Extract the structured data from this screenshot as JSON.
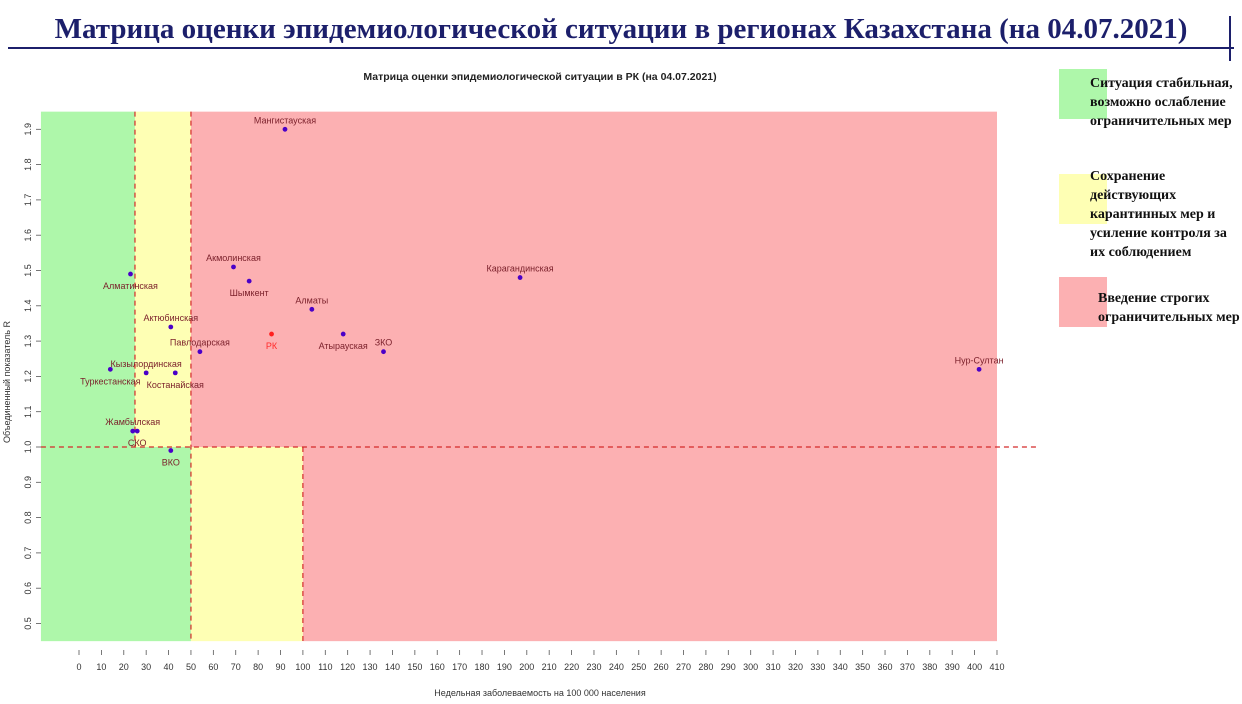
{
  "page": {
    "title": "Матрица оценки эпидемиологической ситуации в регионах Казахстана (на 04.07.2021)"
  },
  "legend": [
    {
      "label": "Ситуация стабильная, возможно ослабление ограничительных мер",
      "color": "#aef7aa"
    },
    {
      "label": "Сохранение действующих карантинных мер и усиление контроля за их соблюдением",
      "color": "#feffb4"
    },
    {
      "label": "Введение строгих ограничительных мер",
      "color": "#fcb0b2"
    }
  ],
  "chart_data": {
    "type": "scatter",
    "title": "Матрица оценки эпидемиологической ситуации в РК (на 04.07.2021)",
    "xlabel": "Недельная заболеваемость на 100 000 населения",
    "ylabel": "Объединенный показатель R",
    "xlim": [
      0,
      410
    ],
    "ylim": [
      0.5,
      1.9
    ],
    "x_ticks": [
      "0",
      "10",
      "20",
      "30",
      "40",
      "50",
      "60",
      "70",
      "80",
      "90",
      "100",
      "110",
      "120",
      "130",
      "140",
      "150",
      "160",
      "170",
      "180",
      "190",
      "200",
      "210",
      "220",
      "230",
      "240",
      "250",
      "260",
      "270",
      "280",
      "290",
      "300",
      "310",
      "320",
      "330",
      "340",
      "350",
      "360",
      "370",
      "380",
      "390",
      "400",
      "410"
    ],
    "y_ticks": [
      "0.5",
      "0.6",
      "0.7",
      "0.8",
      "0.9",
      "1.0",
      "1.1",
      "1.2",
      "1.3",
      "1.4",
      "1.5",
      "1.6",
      "1.7",
      "1.8",
      "1.9"
    ],
    "grid": false,
    "zones": [
      {
        "x_from": -17,
        "x_to": 25,
        "y_from": 1.0,
        "y_to": 1.95,
        "color": "#aef7aa"
      },
      {
        "x_from": 25,
        "x_to": 50,
        "y_from": 1.0,
        "y_to": 1.95,
        "color": "#feffb4"
      },
      {
        "x_from": 50,
        "x_to": 410,
        "y_from": 1.0,
        "y_to": 1.95,
        "color": "#fcb0b2"
      },
      {
        "x_from": -17,
        "x_to": 50,
        "y_from": 0.45,
        "y_to": 1.0,
        "color": "#aef7aa"
      },
      {
        "x_from": 50,
        "x_to": 100,
        "y_from": 0.45,
        "y_to": 1.0,
        "color": "#feffb4"
      },
      {
        "x_from": 100,
        "x_to": 410,
        "y_from": 0.45,
        "y_to": 1.0,
        "color": "#fcb0b2"
      }
    ],
    "threshold_lines": [
      {
        "orientation": "vertical",
        "value": 25,
        "y_from": 1.0,
        "y_to": 1.95
      },
      {
        "orientation": "vertical",
        "value": 50,
        "y_from": 0.45,
        "y_to": 1.95
      },
      {
        "orientation": "vertical",
        "value": 100,
        "y_from": 0.45,
        "y_to": 1.0
      },
      {
        "orientation": "horizontal",
        "value": 1.0,
        "x_from": -17,
        "x_to": 428
      }
    ],
    "points": [
      {
        "label": "Мангистауская",
        "x": 92,
        "y": 1.9,
        "label_pos": "above"
      },
      {
        "label": "Алматинская",
        "x": 23,
        "y": 1.49,
        "label_pos": "below-center"
      },
      {
        "label": "Акмолинская",
        "x": 69,
        "y": 1.51,
        "label_pos": "above"
      },
      {
        "label": "Шымкент",
        "x": 76,
        "y": 1.47,
        "label_pos": "below"
      },
      {
        "label": "Карагандинская",
        "x": 197,
        "y": 1.48,
        "label_pos": "above"
      },
      {
        "label": "Алматы",
        "x": 104,
        "y": 1.39,
        "label_pos": "above"
      },
      {
        "label": "Актюбинская",
        "x": 41,
        "y": 1.34,
        "label_pos": "above"
      },
      {
        "label": "Павлодарская",
        "x": 54,
        "y": 1.27,
        "label_pos": "above"
      },
      {
        "label": "РК",
        "x": 86,
        "y": 1.32,
        "label_pos": "below",
        "highlight": true
      },
      {
        "label": "Атырауская",
        "x": 118,
        "y": 1.32,
        "label_pos": "below"
      },
      {
        "label": "ЗКО",
        "x": 136,
        "y": 1.27,
        "label_pos": "above"
      },
      {
        "label": "Кызылординская",
        "x": 30,
        "y": 1.21,
        "label_pos": "above"
      },
      {
        "label": "Туркестанская",
        "x": 14,
        "y": 1.22,
        "label_pos": "below"
      },
      {
        "label": "Костанайская",
        "x": 43,
        "y": 1.21,
        "label_pos": "below"
      },
      {
        "label": "Нур-Султан",
        "x": 402,
        "y": 1.22,
        "label_pos": "above"
      },
      {
        "label": "Жамбылская",
        "x": 24,
        "y": 1.045,
        "label_pos": "above"
      },
      {
        "label": "СКО",
        "x": 26,
        "y": 1.045,
        "label_pos": "below"
      },
      {
        "label": "ВКО",
        "x": 41,
        "y": 0.99,
        "label_pos": "below"
      }
    ],
    "colors": {
      "point": "#4a00c8",
      "highlight": "#ff1f1f",
      "label": "#7a1f2a",
      "highlight_label": "#ff2a2a",
      "dash": "#d42a2a"
    }
  }
}
